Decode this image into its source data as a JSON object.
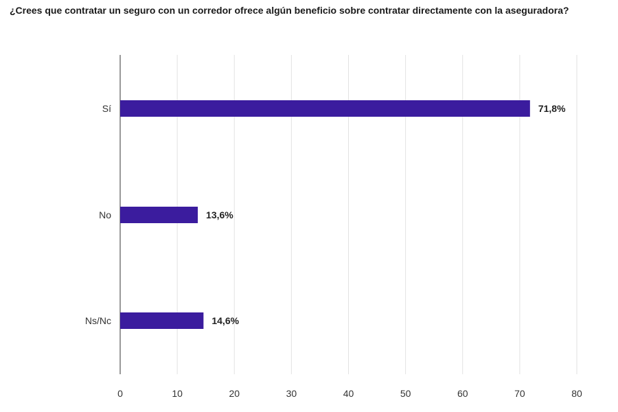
{
  "chart_data": {
    "type": "bar",
    "orientation": "horizontal",
    "title": "¿Crees que contratar un seguro con un corredor ofrece algún beneficio sobre contratar directamente con la aseguradora?",
    "categories": [
      "Sí",
      "No",
      "Ns/Nc"
    ],
    "values": [
      71.8,
      13.6,
      14.6
    ],
    "value_labels": [
      "71,8%",
      "13,6%",
      "14,6%"
    ],
    "xlim": [
      0,
      80
    ],
    "x_ticks": [
      0,
      10,
      20,
      30,
      40,
      50,
      60,
      70,
      80
    ],
    "xlabel": "",
    "ylabel": "",
    "grid": true,
    "legend": false,
    "bar_color": "#3b1c9e"
  }
}
